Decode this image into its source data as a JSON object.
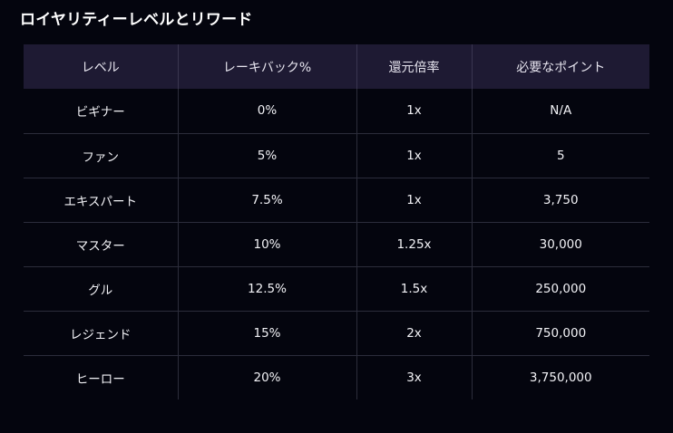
{
  "page": {
    "title": "ロイヤリティーレベルとリワード"
  },
  "colors": {
    "background": "#04050e",
    "header_row": "#1e1a33",
    "grid_line": "#2c2d3b",
    "text": "#ffffff"
  },
  "table": {
    "headers": [
      "レベル",
      "レーキバック%",
      "還元倍率",
      "必要なポイント"
    ],
    "rows": [
      [
        "ビギナー",
        "0%",
        "1x",
        "N/A"
      ],
      [
        "ファン",
        "5%",
        "1x",
        "5"
      ],
      [
        "エキスパート",
        "7.5%",
        "1x",
        "3,750"
      ],
      [
        "マスター",
        "10%",
        "1.25x",
        "30,000"
      ],
      [
        "グル",
        "12.5%",
        "1.5x",
        "250,000"
      ],
      [
        "レジェンド",
        "15%",
        "2x",
        "750,000"
      ],
      [
        "ヒーロー",
        "20%",
        "3x",
        "3,750,000"
      ]
    ]
  }
}
